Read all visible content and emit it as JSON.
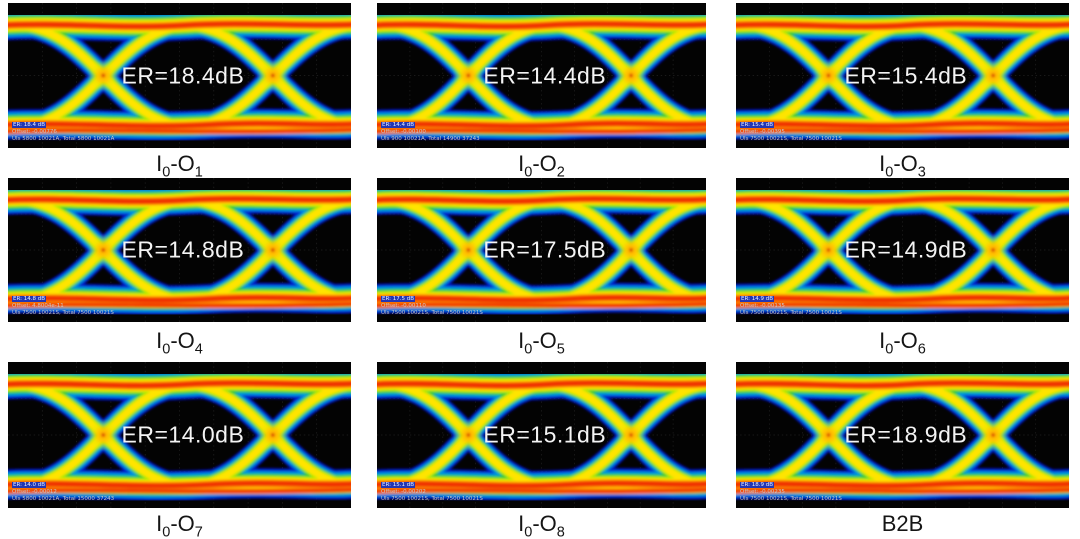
{
  "figure": {
    "type": "eye-diagram-grid",
    "description": "3x3 grid of measured NRZ optical eye diagrams (jet colormap) with extinction ratio annotations",
    "grid": "3x3"
  },
  "colors": {
    "background": "#ffffff",
    "panel_background": "#030303",
    "er_text": "#f4f4f4",
    "caption_text": "#151515",
    "colormap": [
      "#0014c8",
      "#0090e8",
      "#17c83c",
      "#a8e800",
      "#ffe400",
      "#ff8c00",
      "#f03200"
    ]
  },
  "panels": [
    {
      "er_label": "ER=18.4dB",
      "caption": [
        [
          "I",
          "0"
        ],
        [
          "-O",
          "1"
        ]
      ],
      "annotation": {
        "line1": "ER: 18.4 dB",
        "line2": "Offset: -0.00776",
        "line3": "UIs 5800 10021A, Total 5800 10021A"
      }
    },
    {
      "er_label": "ER=14.4dB",
      "caption": [
        [
          "I",
          "0"
        ],
        [
          "-O",
          "2"
        ]
      ],
      "annotation": {
        "line1": "ER: 14.4 dB",
        "line2": "Offset: -0.00100",
        "line3": "UIs 900 10021A, Total 14900 37243"
      }
    },
    {
      "er_label": "ER=15.4dB",
      "caption": [
        [
          "I",
          "0"
        ],
        [
          "-O",
          "3"
        ]
      ],
      "annotation": {
        "line1": "ER: 15.4 dB",
        "line2": "Offset: -0.00395",
        "line3": "UIs 7500 10021S, Total 7500 10021S"
      }
    },
    {
      "er_label": "ER=14.8dB",
      "caption": [
        [
          "I",
          "0"
        ],
        [
          "-O",
          "4"
        ]
      ],
      "annotation": {
        "line1": "ER: 14.8 dB",
        "line2": "Offset: 4.8004e-11",
        "line3": "UIs 7500 10021S, Total 7500 10021S"
      }
    },
    {
      "er_label": "ER=17.5dB",
      "caption": [
        [
          "I",
          "0"
        ],
        [
          "-O",
          "5"
        ]
      ],
      "annotation": {
        "line1": "ER: 17.5 dB",
        "line2": "Offset: -0.00110",
        "line3": "UIs 7500 10021S, Total 7500 10021S"
      }
    },
    {
      "er_label": "ER=14.9dB",
      "caption": [
        [
          "I",
          "0"
        ],
        [
          "-O",
          "6"
        ]
      ],
      "annotation": {
        "line1": "ER: 14.9 dB",
        "line2": "Offset: -0.00135",
        "line3": "UIs 7500 10021S, Total 7500 10021S"
      }
    },
    {
      "er_label": "ER=14.0dB",
      "caption": [
        [
          "I",
          "0"
        ],
        [
          "-O",
          "7"
        ]
      ],
      "annotation": {
        "line1": "ER: 14.0 dB",
        "line2": "Offset: -0.00012",
        "line3": "UIs 5800 10021A, Total 15000 37243"
      }
    },
    {
      "er_label": "ER=15.1dB",
      "caption": [
        [
          "I",
          "0"
        ],
        [
          "-O",
          "8"
        ]
      ],
      "annotation": {
        "line1": "ER: 15.1 dB",
        "line2": "Offset: -0.00202",
        "line3": "UIs 7500 10021S, Total 7500 10021S"
      }
    },
    {
      "er_label": "ER=18.9dB",
      "caption": [
        [
          "B2B",
          ""
        ]
      ],
      "annotation": {
        "line1": "ER: 18.9 dB",
        "line2": "Offset: -0.00235",
        "line3": "UIs 7500 10021S, Total 7500 10021S"
      }
    }
  ],
  "chart_data": {
    "type": "heatmap",
    "subtype": "eye-diagram",
    "title": "",
    "description": "Eye diagrams for input I0 to outputs O1-O8 plus back-to-back (B2B) reference; extinction ratio (ER) labeled per eye",
    "categories": [
      "I0-O1",
      "I0-O2",
      "I0-O3",
      "I0-O4",
      "I0-O5",
      "I0-O6",
      "I0-O7",
      "I0-O8",
      "B2B"
    ],
    "series": [
      {
        "name": "Extinction Ratio (dB)",
        "values": [
          18.4,
          14.4,
          15.4,
          14.8,
          17.5,
          14.9,
          14.0,
          15.1,
          18.9
        ]
      }
    ],
    "legend_position": "none",
    "grid": "faint dotted oscilloscope graticule per panel"
  }
}
